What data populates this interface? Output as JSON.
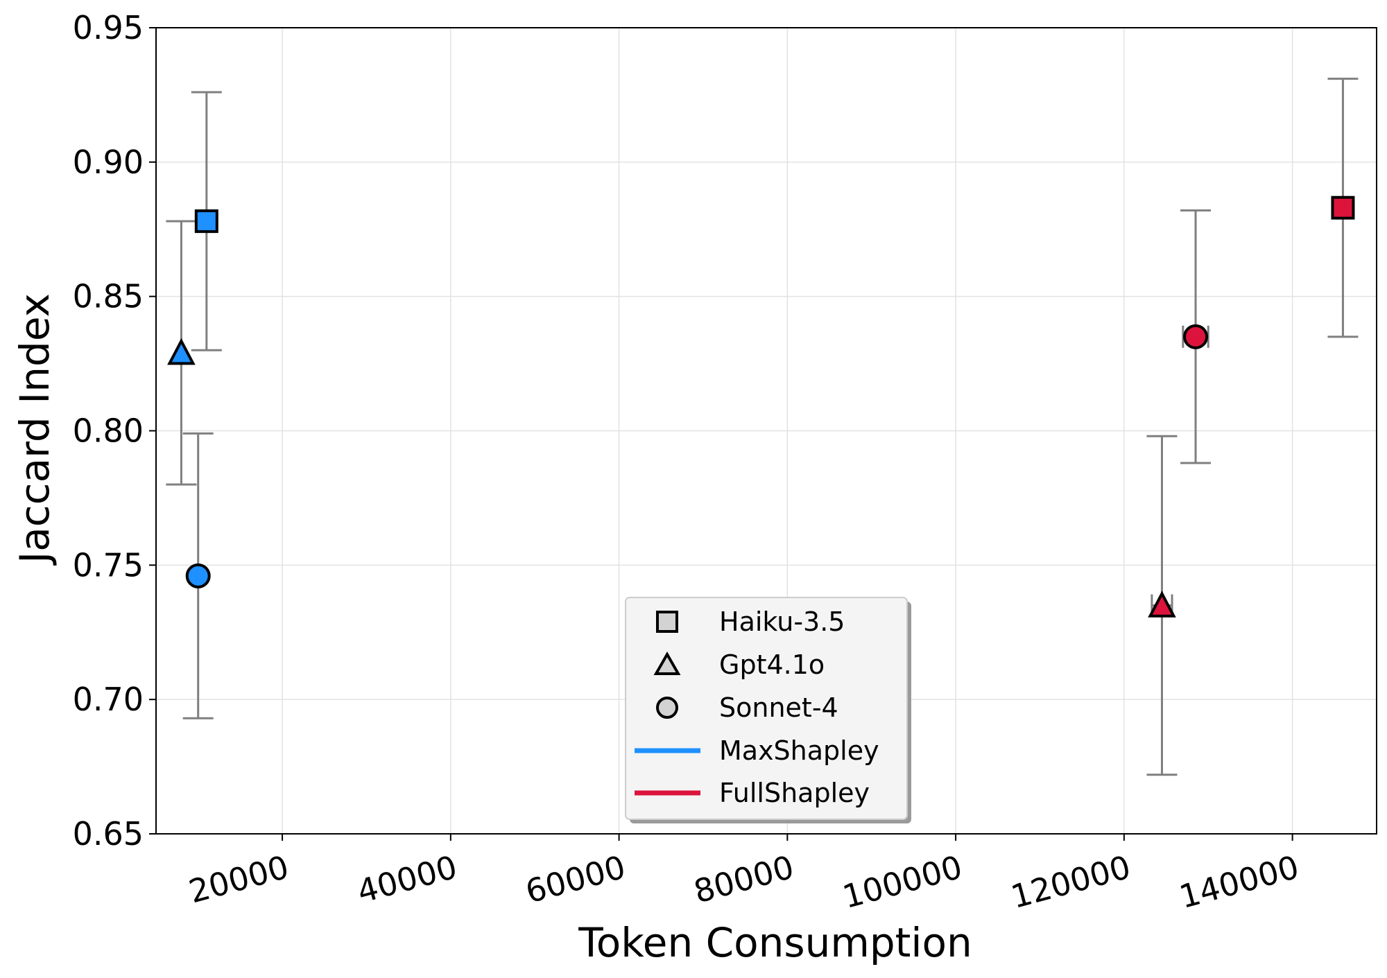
{
  "chart_data": {
    "type": "scatter",
    "title": "",
    "xlabel": "Token Consumption",
    "ylabel": "Jaccard Index",
    "xlim": [
      5000,
      150000
    ],
    "ylim": [
      0.65,
      0.95
    ],
    "xticks": [
      20000,
      40000,
      60000,
      80000,
      100000,
      120000,
      140000
    ],
    "yticks": [
      0.65,
      0.7,
      0.75,
      0.8,
      0.85,
      0.9,
      0.95
    ],
    "grid": true,
    "legend_position": "lower-center",
    "models": [
      {
        "name": "Haiku-3.5",
        "marker": "square"
      },
      {
        "name": "Gpt4.1o",
        "marker": "triangle"
      },
      {
        "name": "Sonnet-4",
        "marker": "circle"
      }
    ],
    "series": [
      {
        "name": "MaxShapley",
        "color": "#1e90ff",
        "points": [
          {
            "model": "Haiku-3.5",
            "x": 11000,
            "y": 0.878,
            "y_err": 0.048,
            "x_err": 0
          },
          {
            "model": "Gpt4.1o",
            "x": 8000,
            "y": 0.829,
            "y_err": 0.049,
            "x_err": 0
          },
          {
            "model": "Sonnet-4",
            "x": 10000,
            "y": 0.746,
            "y_err": 0.053,
            "x_err": 0
          }
        ]
      },
      {
        "name": "FullShapley",
        "color": "#dc143c",
        "points": [
          {
            "model": "Haiku-3.5",
            "x": 146000,
            "y": 0.883,
            "y_err": 0.048,
            "x_err": 0
          },
          {
            "model": "Gpt4.1o",
            "x": 124500,
            "y": 0.735,
            "y_err": 0.063,
            "x_err": 1200
          },
          {
            "model": "Sonnet-4",
            "x": 128500,
            "y": 0.835,
            "y_err": 0.047,
            "x_err": 1500
          }
        ]
      }
    ]
  }
}
